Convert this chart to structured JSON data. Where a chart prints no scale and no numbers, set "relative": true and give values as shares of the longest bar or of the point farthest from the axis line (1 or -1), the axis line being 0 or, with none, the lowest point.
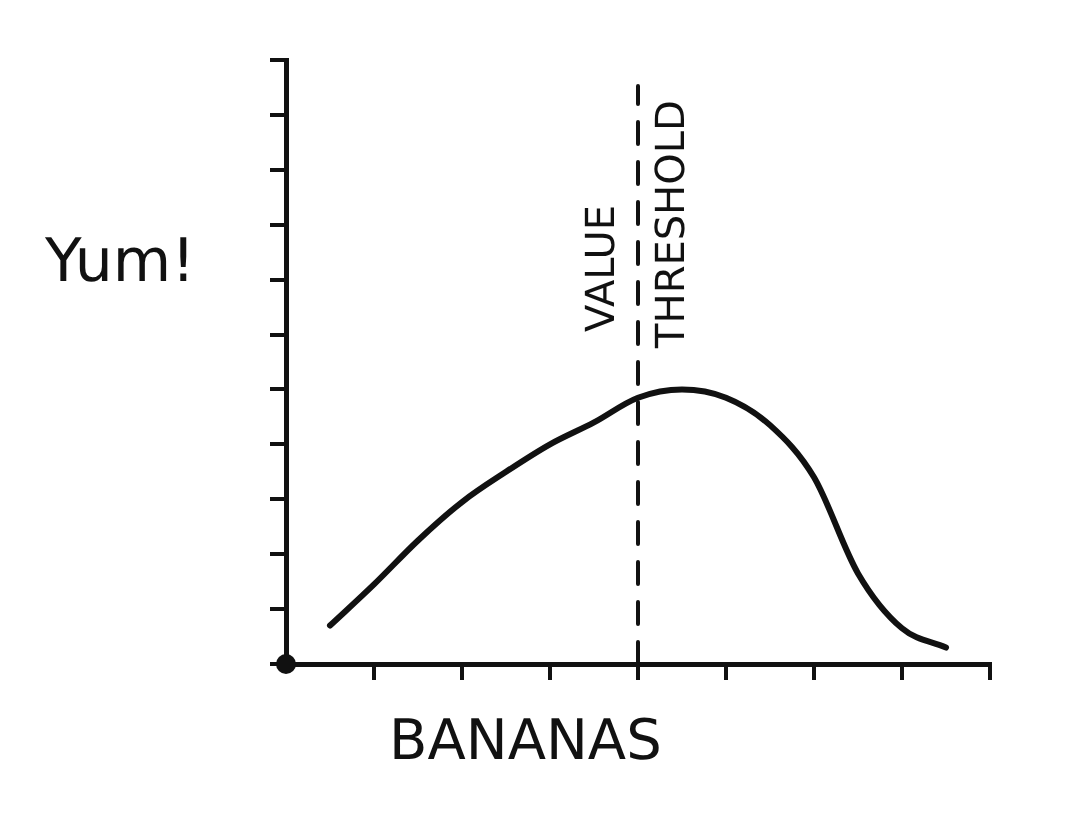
{
  "chart_data": {
    "type": "line",
    "xlabel": "BANANAS",
    "ylabel": "Yum!",
    "relative": true,
    "marker": "none",
    "categories": [
      null,
      null,
      null,
      null,
      null,
      null,
      null,
      null,
      null,
      null,
      null,
      null,
      null,
      null,
      null,
      null,
      null
    ],
    "series": [
      {
        "color": "#111111",
        "values": [
          null,
          0.14,
          0.29,
          0.45,
          0.59,
          0.7,
          0.8,
          0.88,
          0.97,
          1,
          0.97,
          0.87,
          0.68,
          0.33,
          0.13,
          0.06,
          null
        ]
      }
    ],
    "annotations": [
      "VALUE THRESHOLD"
    ]
  }
}
